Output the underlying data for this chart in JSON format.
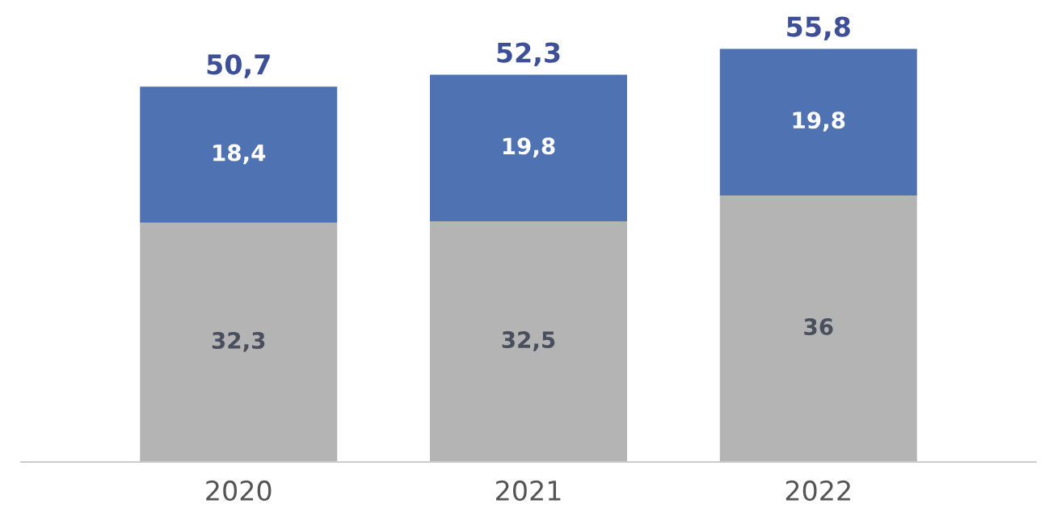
{
  "chart_data": {
    "type": "bar",
    "stacked": true,
    "categories": [
      "2020",
      "2021",
      "2022"
    ],
    "series": [
      {
        "color": "#b4b4b4",
        "values": [
          32.3,
          32.5,
          36
        ],
        "value_labels": [
          "32,3",
          "32,5",
          "36"
        ]
      },
      {
        "color": "#4f72b3",
        "values": [
          18.4,
          19.8,
          19.8
        ],
        "value_labels": [
          "18,4",
          "19,8",
          "19,8"
        ]
      }
    ],
    "totals": [
      "50,7",
      "52,3",
      "55,8"
    ]
  }
}
